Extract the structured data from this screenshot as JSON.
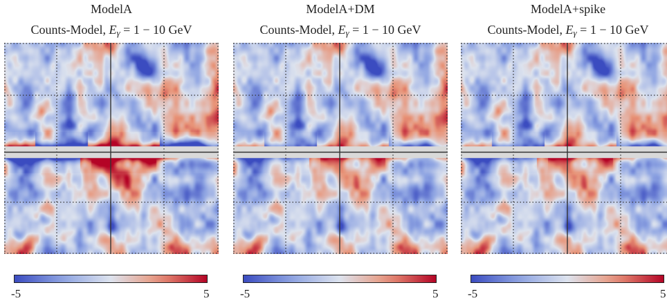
{
  "colors": {
    "cmap_low": "#3b4cc0",
    "cmap_mid": "#dde3ee",
    "cmap_high": "#b40426",
    "band": "#d9d9d9",
    "grid": "#333333"
  },
  "chart_data": [
    {
      "type": "heatmap",
      "title": "ModelA",
      "subtitle": {
        "prefix": "Counts-Model, ",
        "var": "E",
        "sub": "γ",
        "suffix": " = 1 − 10 GeV"
      },
      "colorbar": {
        "min": -5,
        "max": 5,
        "min_label": "-5",
        "max_label": "5",
        "colormap": "coolwarm"
      },
      "band_scale": 1.0,
      "seed": 11
    },
    {
      "type": "heatmap",
      "title": "ModelA+DM",
      "subtitle": {
        "prefix": "Counts-Model, ",
        "var": "E",
        "sub": "γ",
        "suffix": " = 1 − 10 GeV"
      },
      "colorbar": {
        "min": -5,
        "max": 5,
        "min_label": "-5",
        "max_label": "5",
        "colormap": "coolwarm"
      },
      "band_scale": 0.55,
      "seed": 11
    },
    {
      "type": "heatmap",
      "title": "ModelA+spike",
      "subtitle": {
        "prefix": "Counts-Model, ",
        "var": "E",
        "sub": "γ",
        "suffix": " = 1 − 10 GeV"
      },
      "colorbar": {
        "min": -5,
        "max": 5,
        "min_label": "-5",
        "max_label": "5",
        "colormap": "coolwarm"
      },
      "band_scale": 0.6,
      "seed": 11
    }
  ]
}
